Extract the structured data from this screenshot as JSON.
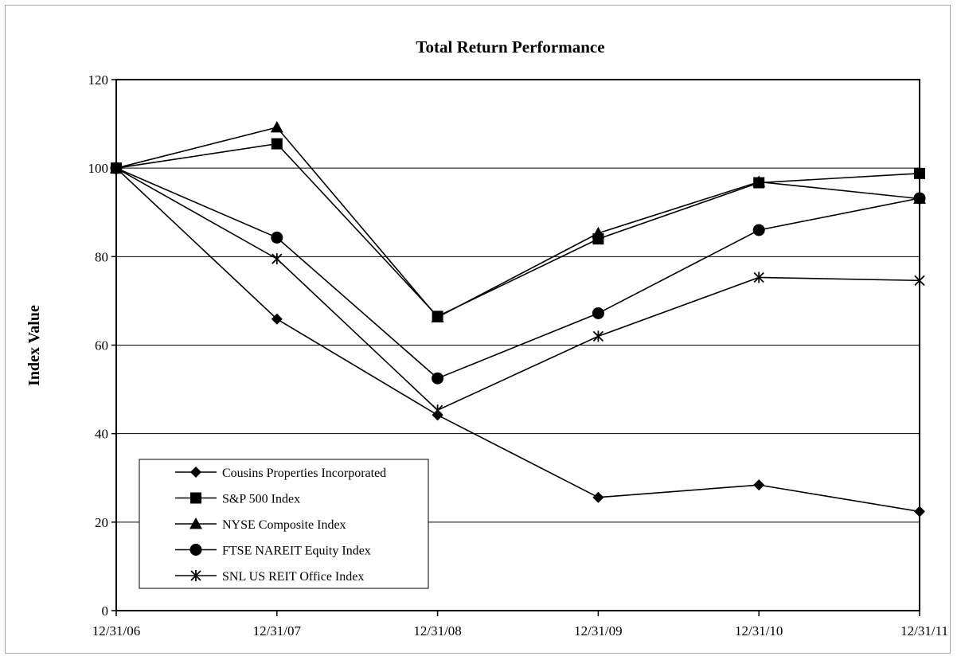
{
  "chart_data": {
    "type": "line",
    "title": "Total Return Performance",
    "xlabel": "",
    "ylabel": "Index Value",
    "x": [
      "12/31/06",
      "12/31/07",
      "12/31/08",
      "12/31/09",
      "12/31/10",
      "12/31/11"
    ],
    "ylim": [
      0,
      120
    ],
    "yticks": [
      0,
      20,
      40,
      60,
      80,
      100,
      120
    ],
    "grid": true,
    "legend_position": "bottom-left",
    "series": [
      {
        "name": "Cousins Properties Incorporated",
        "marker": "diamond",
        "values": [
          100,
          65.9,
          44.2,
          25.6,
          28.4,
          22.4
        ]
      },
      {
        "name": "S&P 500 Index",
        "marker": "square",
        "values": [
          100,
          105.5,
          66.5,
          84.0,
          96.7,
          98.8
        ]
      },
      {
        "name": "NYSE Composite Index",
        "marker": "triangle",
        "values": [
          100,
          109.2,
          66.3,
          85.3,
          96.9,
          93.1
        ]
      },
      {
        "name": "FTSE NAREIT Equity Index",
        "marker": "circle",
        "values": [
          100,
          84.3,
          52.5,
          67.2,
          86.0,
          93.2
        ]
      },
      {
        "name": "SNL US REIT Office Index",
        "marker": "star",
        "values": [
          100,
          79.5,
          45.3,
          62.0,
          75.3,
          74.6
        ]
      }
    ]
  }
}
